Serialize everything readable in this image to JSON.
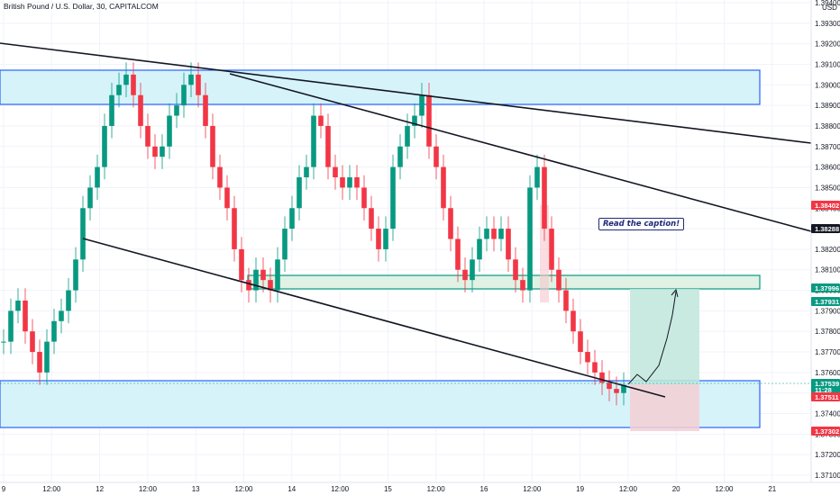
{
  "title": "British Pound / U.S. Dollar, 30, CAPITALCOM",
  "currency": "USD",
  "note": "Read the caption!",
  "price_axis": {
    "ticks": [
      "1.39400",
      "1.39300",
      "1.39200",
      "1.39100",
      "1.39000",
      "1.38900",
      "1.38800",
      "1.38700",
      "1.38600",
      "1.38500",
      "1.38400",
      "1.38300",
      "1.38200",
      "1.38100",
      "1.38000",
      "1.37900",
      "1.37800",
      "1.37700",
      "1.37600",
      "1.37500",
      "1.37400",
      "1.37300",
      "1.37200",
      "1.37100"
    ],
    "tags": [
      {
        "label": "1.38402",
        "color": "#f23645"
      },
      {
        "label": "1.38288",
        "color": "#131722"
      },
      {
        "label": "1.37996",
        "color": "#089981"
      },
      {
        "label": "1.37931",
        "color": "#089981"
      },
      {
        "label": "1.37539",
        "sub": "11:28",
        "color": "#089981"
      },
      {
        "label": "1.37511",
        "color": "#f23645"
      },
      {
        "label": "1.37302",
        "color": "#f23645"
      }
    ]
  },
  "time_axis": [
    "9",
    "12:00",
    "12",
    "12:00",
    "13",
    "12:00",
    "14",
    "12:00",
    "15",
    "12:00",
    "16",
    "12:00",
    "19",
    "12:00",
    "20",
    "12:00",
    "21"
  ],
  "colors": {
    "up": "#089981",
    "down": "#f23645",
    "zone_blue": "#2962ff",
    "zone_green": "#089981",
    "profit": "#089981",
    "loss": "#f23645"
  },
  "chart_data": {
    "type": "candlestick",
    "symbol": "GBPUSD",
    "interval": "30",
    "ylim": [
      1.3705,
      1.3943
    ],
    "current_price": 1.37539,
    "zones": [
      {
        "kind": "resistance",
        "low": 1.3889,
        "high": 1.3906
      },
      {
        "kind": "support-retest",
        "low": 1.3795,
        "high": 1.3802
      },
      {
        "kind": "support",
        "low": 1.373,
        "high": 1.3756
      }
    ],
    "trade": {
      "entry": 1.37539,
      "target": 1.37996,
      "stop": 1.37302
    },
    "series": [
      1.3775,
      1.379,
      1.3795,
      1.378,
      1.377,
      1.376,
      1.3775,
      1.3785,
      1.379,
      1.38,
      1.3815,
      1.384,
      1.385,
      1.386,
      1.388,
      1.3895,
      1.39,
      1.3905,
      1.3895,
      1.388,
      1.387,
      1.3865,
      1.387,
      1.3885,
      1.389,
      1.39,
      1.3905,
      1.3895,
      1.388,
      1.386,
      1.385,
      1.384,
      1.382,
      1.3805,
      1.38,
      1.381,
      1.3805,
      1.38,
      1.3815,
      1.383,
      1.384,
      1.3855,
      1.386,
      1.3885,
      1.388,
      1.386,
      1.3855,
      1.385,
      1.3855,
      1.385,
      1.384,
      1.383,
      1.382,
      1.383,
      1.386,
      1.387,
      1.388,
      1.3885,
      1.3895,
      1.387,
      1.386,
      1.384,
      1.3825,
      1.381,
      1.3805,
      1.3815,
      1.3825,
      1.383,
      1.3825,
      1.383,
      1.3815,
      1.3805,
      1.38,
      1.385,
      1.386,
      1.383,
      1.381,
      1.38,
      1.379,
      1.378,
      1.377,
      1.3765,
      1.376,
      1.3755,
      1.3752,
      1.375,
      1.3754
    ]
  }
}
